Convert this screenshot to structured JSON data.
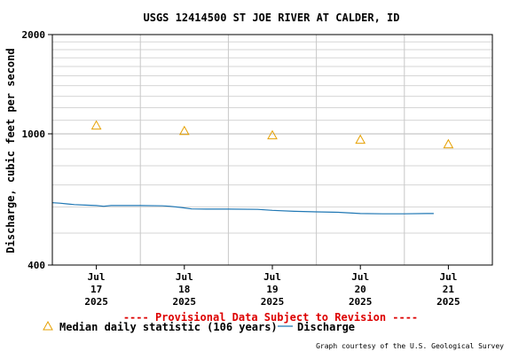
{
  "chart_data": {
    "type": "line",
    "title": "USGS 12414500 ST JOE RIVER AT CALDER, ID",
    "ylabel": "Discharge, cubic feet per second",
    "xlabel": "",
    "y_scale": "log",
    "ylim": [
      400,
      2000
    ],
    "y_ticks": [
      {
        "value": 400,
        "label": "400"
      },
      {
        "value": 1000,
        "label": "1000"
      },
      {
        "value": 2000,
        "label": "2000"
      }
    ],
    "x_range": [
      "2025-07-16 12:00",
      "2025-07-21 12:00"
    ],
    "x_ticks": [
      {
        "x": "2025-07-17",
        "lines": [
          "Jul",
          "17",
          "2025"
        ]
      },
      {
        "x": "2025-07-18",
        "lines": [
          "Jul",
          "18",
          "2025"
        ]
      },
      {
        "x": "2025-07-19",
        "lines": [
          "Jul",
          "19",
          "2025"
        ]
      },
      {
        "x": "2025-07-20",
        "lines": [
          "Jul",
          "20",
          "2025"
        ]
      },
      {
        "x": "2025-07-21",
        "lines": [
          "Jul",
          "21",
          "2025"
        ]
      }
    ],
    "grid": true,
    "series": [
      {
        "name": "Discharge",
        "color": "#1f77b4",
        "style": "line",
        "points": [
          {
            "x": "2025-07-16 12:00",
            "y": 618
          },
          {
            "x": "2025-07-16 14:00",
            "y": 616
          },
          {
            "x": "2025-07-16 16:00",
            "y": 613
          },
          {
            "x": "2025-07-16 18:00",
            "y": 610
          },
          {
            "x": "2025-07-16 21:00",
            "y": 608
          },
          {
            "x": "2025-07-17 00:00",
            "y": 606
          },
          {
            "x": "2025-07-17 02:00",
            "y": 603
          },
          {
            "x": "2025-07-17 04:00",
            "y": 606
          },
          {
            "x": "2025-07-17 06:00",
            "y": 606
          },
          {
            "x": "2025-07-17 12:00",
            "y": 606
          },
          {
            "x": "2025-07-17 18:00",
            "y": 605
          },
          {
            "x": "2025-07-17 20:00",
            "y": 603
          },
          {
            "x": "2025-07-17 23:00",
            "y": 598
          },
          {
            "x": "2025-07-18 02:00",
            "y": 592
          },
          {
            "x": "2025-07-18 06:00",
            "y": 591
          },
          {
            "x": "2025-07-18 12:00",
            "y": 591
          },
          {
            "x": "2025-07-18 20:00",
            "y": 590
          },
          {
            "x": "2025-07-19 00:00",
            "y": 586
          },
          {
            "x": "2025-07-19 06:00",
            "y": 582
          },
          {
            "x": "2025-07-19 12:00",
            "y": 580
          },
          {
            "x": "2025-07-19 18:00",
            "y": 578
          },
          {
            "x": "2025-07-20 00:00",
            "y": 573
          },
          {
            "x": "2025-07-20 06:00",
            "y": 572
          },
          {
            "x": "2025-07-20 12:00",
            "y": 572
          },
          {
            "x": "2025-07-20 18:00",
            "y": 573
          },
          {
            "x": "2025-07-20 20:00",
            "y": 573
          }
        ]
      },
      {
        "name": "Median daily statistic (106 years)",
        "color": "#e6a000",
        "style": "triangle",
        "points": [
          {
            "x": "2025-07-17",
            "y": 1060
          },
          {
            "x": "2025-07-18",
            "y": 1020
          },
          {
            "x": "2025-07-19",
            "y": 990
          },
          {
            "x": "2025-07-20",
            "y": 960
          },
          {
            "x": "2025-07-21",
            "y": 930
          }
        ]
      }
    ],
    "legend": {
      "position": "bottom",
      "entries": [
        {
          "label": "Median daily statistic (106 years)",
          "symbol": "triangle",
          "color": "#e6a000"
        },
        {
          "label": "Discharge",
          "symbol": "line",
          "color": "#1f77b4"
        }
      ]
    },
    "annotations": {
      "provisional": "---- Provisional Data Subject to Revision ----",
      "provisional_color": "#dd0000",
      "credit": "Graph courtesy of the U.S. Geological Survey"
    }
  }
}
